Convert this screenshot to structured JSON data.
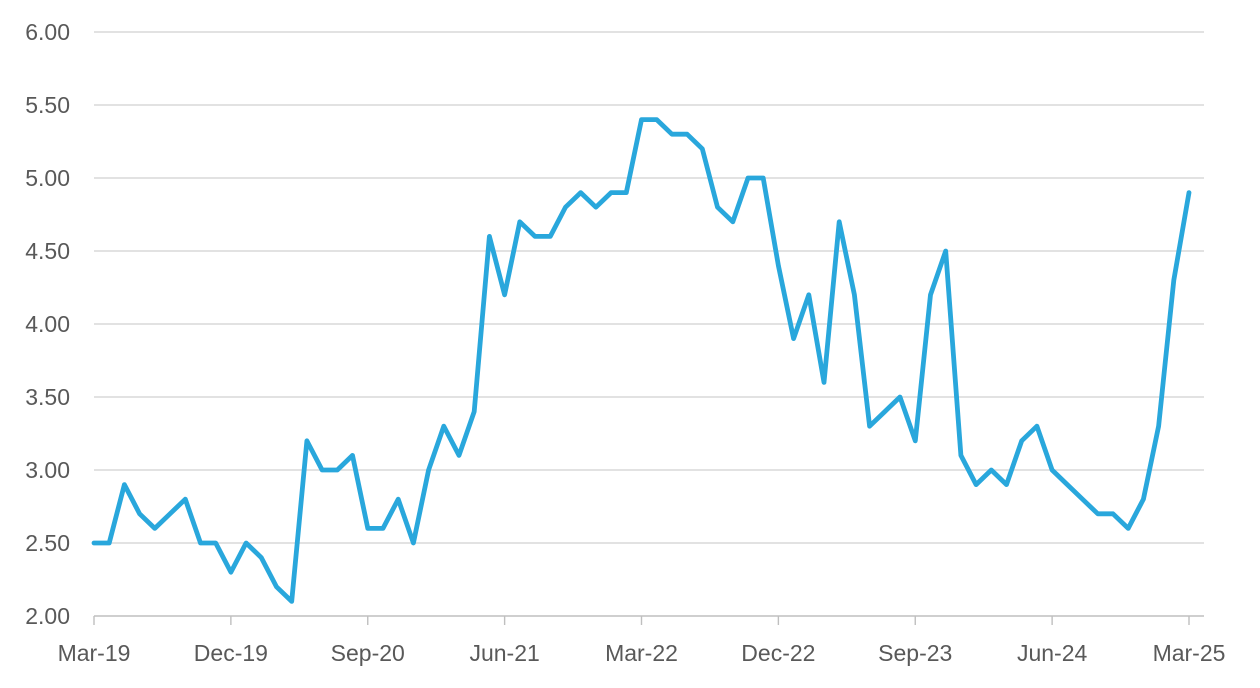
{
  "page": {
    "background": "#FFFFFF",
    "title": ""
  },
  "chart_data": {
    "type": "line",
    "title": "",
    "legend": "none",
    "grid": "horizontal-only",
    "ylim": [
      2.0,
      6.0
    ],
    "y_step": 0.5,
    "y_tick_labels": [
      "6.00",
      "5.50",
      "5.00",
      "4.50",
      "4.00",
      "3.50",
      "3.00",
      "2.50",
      "2.00"
    ],
    "x_tick_labels": [
      "Mar-19",
      "Dec-19",
      "Sep-20",
      "Jun-21",
      "Mar-22",
      "Dec-22",
      "Sep-23",
      "Jun-24",
      "Mar-25"
    ],
    "x_tick_month_indices": [
      0,
      9,
      18,
      27,
      36,
      45,
      54,
      63,
      72
    ],
    "x": [
      "Mar-19",
      "Apr-19",
      "May-19",
      "Jun-19",
      "Jul-19",
      "Aug-19",
      "Sep-19",
      "Oct-19",
      "Nov-19",
      "Dec-19",
      "Jan-20",
      "Feb-20",
      "Mar-20",
      "Apr-20",
      "May-20",
      "Jun-20",
      "Jul-20",
      "Aug-20",
      "Sep-20",
      "Oct-20",
      "Nov-20",
      "Dec-20",
      "Jan-21",
      "Feb-21",
      "Mar-21",
      "Apr-21",
      "May-21",
      "Jun-21",
      "Jul-21",
      "Aug-21",
      "Sep-21",
      "Oct-21",
      "Nov-21",
      "Dec-21",
      "Jan-22",
      "Feb-22",
      "Mar-22",
      "Apr-22",
      "May-22",
      "Jun-22",
      "Jul-22",
      "Aug-22",
      "Sep-22",
      "Oct-22",
      "Nov-22",
      "Dec-22",
      "Jan-23",
      "Feb-23",
      "Mar-23",
      "Apr-23",
      "May-23",
      "Jun-23",
      "Jul-23",
      "Aug-23",
      "Sep-23",
      "Oct-23",
      "Nov-23",
      "Dec-23",
      "Jan-24",
      "Feb-24",
      "Mar-24",
      "Apr-24",
      "May-24",
      "Jun-24",
      "Jul-24",
      "Aug-24",
      "Sep-24",
      "Oct-24",
      "Nov-24",
      "Dec-24",
      "Jan-25",
      "Feb-25",
      "Mar-25"
    ],
    "series": [
      {
        "name": "monthly-series",
        "color": "#29A7DC",
        "values": [
          2.5,
          2.5,
          2.9,
          2.7,
          2.6,
          2.7,
          2.8,
          2.5,
          2.5,
          2.3,
          2.5,
          2.4,
          2.2,
          2.1,
          3.2,
          3.0,
          3.0,
          3.1,
          2.6,
          2.6,
          2.8,
          2.5,
          3.0,
          3.3,
          3.1,
          3.4,
          4.6,
          4.2,
          4.7,
          4.6,
          4.6,
          4.8,
          4.9,
          4.8,
          4.9,
          4.9,
          5.4,
          5.4,
          5.3,
          5.3,
          5.2,
          4.8,
          4.7,
          5.0,
          5.0,
          4.4,
          3.9,
          4.2,
          3.6,
          4.7,
          4.2,
          3.3,
          3.4,
          3.5,
          3.2,
          4.2,
          4.5,
          3.1,
          2.9,
          3.0,
          2.9,
          3.2,
          3.3,
          3.0,
          2.9,
          2.8,
          2.7,
          2.7,
          2.6,
          2.8,
          3.3,
          4.3,
          4.9
        ]
      }
    ],
    "style": {
      "line_color": "#29A7DC",
      "line_width": 4.8,
      "gridline_color": "#D9D9D9",
      "axis_line_color": "#BFBFBF",
      "tick_color": "#BFBFBF",
      "label_color": "#595959",
      "background": "#FFFFFF"
    }
  }
}
